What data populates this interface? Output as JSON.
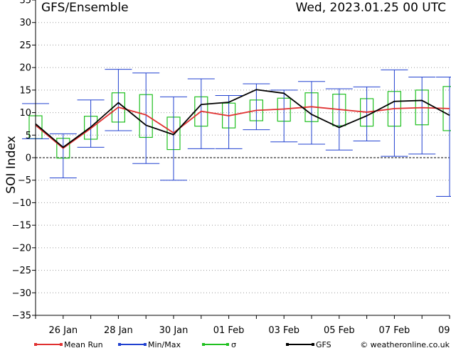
{
  "chart_data": {
    "type": "line",
    "title": "GFS/Ensemble",
    "timestamp": "Wed, 2023.01.25   00 UTC",
    "ylabel": "SOI Index",
    "xlabel": "",
    "ylim": [
      -35,
      35
    ],
    "yticks": [
      35,
      30,
      25,
      20,
      15,
      10,
      5,
      0,
      -5,
      -10,
      -15,
      -20,
      -25,
      -30,
      -35
    ],
    "xlim": [
      0,
      15
    ],
    "xticks": [
      {
        "x": 1,
        "label": "26 Jan"
      },
      {
        "x": 3,
        "label": "28 Jan"
      },
      {
        "x": 5,
        "label": "30 Jan"
      },
      {
        "x": 7,
        "label": "01 Feb"
      },
      {
        "x": 9,
        "label": "03 Feb"
      },
      {
        "x": 11,
        "label": "05 Feb"
      },
      {
        "x": 13,
        "label": "07 Feb"
      },
      {
        "x": 14.8,
        "label": "09"
      }
    ],
    "grid": true,
    "legend_position": "bottom",
    "colors": {
      "mean": "#e03030",
      "minmax": "#2040d0",
      "sigma": "#20c020",
      "gfs": "#000000"
    },
    "x": [
      0,
      1,
      2,
      3,
      4,
      5,
      6,
      7,
      8,
      9,
      10,
      11,
      12,
      13,
      14,
      15
    ],
    "series": [
      {
        "name": "Mean Run",
        "values": [
          7.2,
          2.1,
          6.5,
          11.2,
          9.5,
          5.5,
          10.3,
          9.3,
          10.5,
          10.8,
          11.3,
          10.7,
          10.1,
          10.9,
          11.1,
          10.9
        ]
      },
      {
        "name": "GFS",
        "values": [
          7.5,
          2.3,
          6.8,
          12.2,
          7.2,
          5.1,
          11.8,
          12.3,
          15.1,
          14.3,
          9.6,
          6.7,
          9.3,
          12.5,
          12.7,
          9.4
        ]
      }
    ],
    "minmax": [
      {
        "x": 0,
        "min": 4.2,
        "max": 12.0
      },
      {
        "x": 1,
        "min": -4.5,
        "max": 5.3
      },
      {
        "x": 2,
        "min": 2.3,
        "max": 12.8
      },
      {
        "x": 3,
        "min": 6.0,
        "max": 19.6
      },
      {
        "x": 4,
        "min": -1.3,
        "max": 18.8
      },
      {
        "x": 5,
        "min": -5.0,
        "max": 13.5
      },
      {
        "x": 6,
        "min": 2.0,
        "max": 17.5
      },
      {
        "x": 7,
        "min": 2.0,
        "max": 13.8
      },
      {
        "x": 8,
        "min": 6.2,
        "max": 16.4
      },
      {
        "x": 9,
        "min": 3.5,
        "max": 15.0
      },
      {
        "x": 10,
        "min": 3.0,
        "max": 16.9
      },
      {
        "x": 11,
        "min": 1.7,
        "max": 15.3
      },
      {
        "x": 12,
        "min": 3.7,
        "max": 15.7
      },
      {
        "x": 13,
        "min": 0.3,
        "max": 19.5
      },
      {
        "x": 14,
        "min": 0.8,
        "max": 17.9
      },
      {
        "x": 15,
        "min": -8.6,
        "max": 17.9
      }
    ],
    "sigma": [
      {
        "x": 0,
        "low": 4.2,
        "high": 9.3
      },
      {
        "x": 1,
        "low": -0.1,
        "high": 4.3
      },
      {
        "x": 2,
        "low": 4.1,
        "high": 9.2
      },
      {
        "x": 3,
        "low": 7.9,
        "high": 14.4
      },
      {
        "x": 4,
        "low": 4.5,
        "high": 14.0
      },
      {
        "x": 5,
        "low": 1.8,
        "high": 9.0
      },
      {
        "x": 6,
        "low": 7.0,
        "high": 13.5
      },
      {
        "x": 7,
        "low": 6.6,
        "high": 12.1
      },
      {
        "x": 8,
        "low": 8.2,
        "high": 12.8
      },
      {
        "x": 9,
        "low": 8.1,
        "high": 13.2
      },
      {
        "x": 10,
        "low": 8.0,
        "high": 14.4
      },
      {
        "x": 11,
        "low": 7.1,
        "high": 14.1
      },
      {
        "x": 12,
        "low": 7.0,
        "high": 13.1
      },
      {
        "x": 13,
        "low": 7.0,
        "high": 14.7
      },
      {
        "x": 14,
        "low": 7.3,
        "high": 15.0
      },
      {
        "x": 15,
        "low": 6.0,
        "high": 15.8
      }
    ]
  },
  "legend": {
    "mean_label": "Mean Run",
    "minmax_label": "Min/Max",
    "sigma_label": "σ",
    "gfs_label": "GFS"
  },
  "credit": "© weatheronline.co.uk"
}
